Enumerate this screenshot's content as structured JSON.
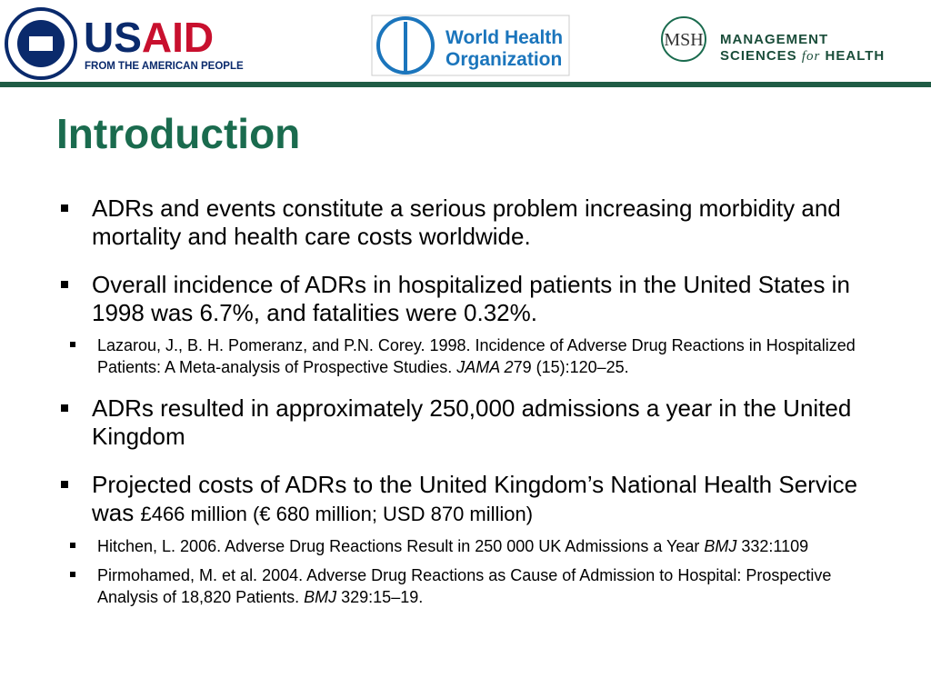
{
  "header": {
    "usaid": {
      "name_a": "US",
      "name_b": "AID",
      "tagline": "FROM THE AMERICAN PEOPLE"
    },
    "who": {
      "line1": "World Health",
      "line2": "Organization"
    },
    "msh": {
      "abbr": "MSH",
      "line1": "MANAGEMENT",
      "line2_a": "SCIENCES",
      "line2_b": "for",
      "line2_c": "HEALTH"
    }
  },
  "title": "Introduction",
  "bullets": [
    {
      "parts": [
        {
          "text": "ADRs and events constitute a serious problem increasing morbidity and mortality and health care costs worldwide."
        }
      ],
      "refs": []
    },
    {
      "parts": [
        {
          "text": "Overall incidence of ADRs in hospitalized patients in the United States in 1998 was 6.7%, and fatalities were 0.32%."
        }
      ],
      "refs": [
        {
          "parts": [
            {
              "text": "Lazarou, J., B. H. Pomeranz, and P.N. Corey. 1998. Incidence of Adverse Drug Reactions in Hospitalized Patients: A Meta-analysis of Prospective Studies. "
            },
            {
              "text": "JAMA 2",
              "italic": true
            },
            {
              "text": "79 (15):120–25."
            }
          ]
        }
      ]
    },
    {
      "parts": [
        {
          "text": "ADRs resulted in approximately 250,000 admissions a year in the United Kingdom"
        }
      ],
      "refs": []
    },
    {
      "parts": [
        {
          "text": "Projected costs of ADRs to the United Kingdom’s National Health Service was "
        },
        {
          "text": "£466 million (€ 680 million; USD 870 million)",
          "small": true
        }
      ],
      "refs": [
        {
          "parts": [
            {
              "text": "Hitchen, L. 2006. Adverse Drug Reactions Result in 250 000 UK Admissions a Year "
            },
            {
              "text": "BMJ",
              "italic": true
            },
            {
              "text": " 332:1109"
            }
          ]
        },
        {
          "parts": [
            {
              "text": "Pirmohamed, M. et al. 2004. Adverse Drug Reactions as Cause of Admission to Hospital: Prospective Analysis of 18,820 Patients. "
            },
            {
              "text": "BMJ",
              "italic": true
            },
            {
              "text": " 329:15–19."
            }
          ]
        }
      ]
    }
  ]
}
